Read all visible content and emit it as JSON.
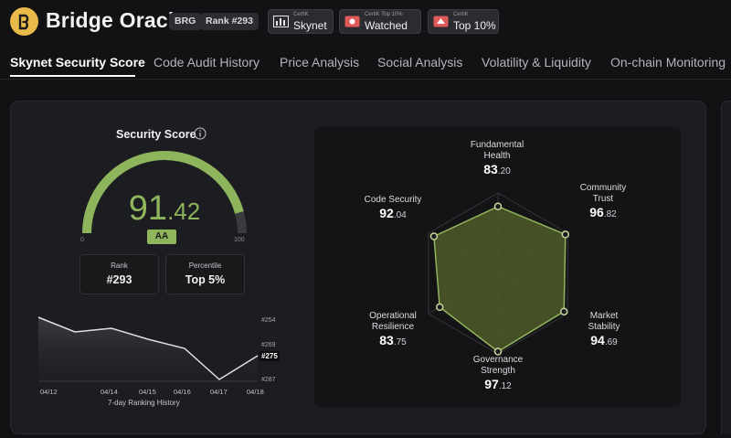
{
  "header": {
    "title": "Bridge Oracle",
    "symbol": "BRG",
    "rank_badge": "Rank #293",
    "badges": [
      {
        "caption": "CertiK",
        "value": "Skynet",
        "icon": "skynet-icon"
      },
      {
        "caption": "CertiK Top 10%",
        "value": "Watched",
        "icon": "watched-icon"
      },
      {
        "caption": "CertiK",
        "value": "Top 10%",
        "icon": "top-icon"
      }
    ]
  },
  "tabs": [
    "Skynet Security Score",
    "Code Audit History",
    "Price Analysis",
    "Social Analysis",
    "Volatility & Liquidity",
    "On-chain Monitoring"
  ],
  "active_tab": "Skynet Security Score",
  "security": {
    "title": "Security Score",
    "score_int": "91",
    "score_dec": ".42",
    "score": 91.42,
    "grade": "AA",
    "gauge_min": "0",
    "gauge_max": "100",
    "rank_label": "Rank",
    "rank_value": "#293",
    "percentile_label": "Percentile",
    "percentile_value": "Top 5%"
  },
  "history": {
    "label": "7-day Ranking History",
    "dates": [
      "04/12",
      "04/14",
      "04/15",
      "04/16",
      "04/17",
      "04/18"
    ],
    "y_labels": [
      "#254",
      "#269",
      "#287"
    ],
    "current": "#275"
  },
  "radar": {
    "axes": [
      {
        "name_lines": [
          "Fundamental",
          "Health"
        ],
        "int": "83",
        "dec": ".20",
        "value": 83.2
      },
      {
        "name_lines": [
          "Community",
          "Trust"
        ],
        "int": "96",
        "dec": ".82",
        "value": 96.82
      },
      {
        "name_lines": [
          "Market",
          "Stability"
        ],
        "int": "94",
        "dec": ".69",
        "value": 94.69
      },
      {
        "name_lines": [
          "Governance",
          "Strength"
        ],
        "int": "97",
        "dec": ".12",
        "value": 97.12
      },
      {
        "name_lines": [
          "Operational",
          "Resilience"
        ],
        "int": "83",
        "dec": ".75",
        "value": 83.75
      },
      {
        "name_lines": [
          "Code Security"
        ],
        "int": "92",
        "dec": ".04",
        "value": 92.04
      }
    ]
  },
  "colors": {
    "accent": "#8fb55c",
    "radar_fill": "#4f5a2a",
    "background": "#121214",
    "card": "#1c1d20"
  }
}
